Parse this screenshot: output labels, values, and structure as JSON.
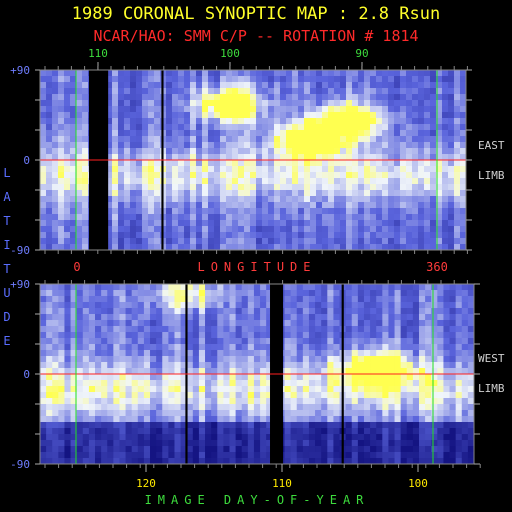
{
  "title": "1989 CORONAL SYNOPTIC MAP : 2.8 Rsun",
  "subtitle": "NCAR/HAO: SMM C/P -- ROTATION # 1814",
  "colors": {
    "title": "#ffff2a",
    "subtitle": "#ff2a2a",
    "top_ticks": "#3ddc3d",
    "latitude_ticks": "#6f7dff",
    "bottom_ticks": "#ffe900",
    "longitude_ticks": "#ff3b3b",
    "side_labels": "#d0d0d0",
    "equator_line": "#ff2020",
    "marker_line": "#20e020",
    "low_intensity": "#15158a",
    "high_intensity": "#fff55a"
  },
  "chart_data": {
    "type": "heatmap",
    "ylabel": "LATITUDE",
    "top_axis_ticks": [
      "110",
      "100",
      "90"
    ],
    "longitude_label": "LONGITUDE",
    "longitude_ticks": [
      "0",
      "360"
    ],
    "bottom_axis_label": "IMAGE DAY-OF-YEAR",
    "bottom_axis_ticks": [
      "120",
      "110",
      "100"
    ],
    "panels": [
      {
        "name": "east",
        "side_labels": [
          "EAST",
          "LIMB"
        ],
        "lat_ticks": [
          "+90",
          "0",
          "-90"
        ],
        "ylim": [
          -90,
          90
        ],
        "equator": 0,
        "data_gaps_frac": [
          [
            0.115,
            0.16
          ],
          [
            0.285,
            0.29
          ]
        ],
        "bright_regions": [
          {
            "day": 100,
            "lat": 55,
            "level": "high"
          },
          {
            "day": 94,
            "lat": 20,
            "level": "high"
          },
          {
            "day": 91,
            "lat": 40,
            "level": "high"
          }
        ]
      },
      {
        "name": "west",
        "side_labels": [
          "WEST",
          "LIMB"
        ],
        "lat_ticks": [
          "+90",
          "0",
          "-90"
        ],
        "ylim": [
          -90,
          90
        ],
        "equator": 0,
        "data_gaps_frac": [
          [
            0.335,
            0.34
          ],
          [
            0.53,
            0.56
          ],
          [
            0.695,
            0.7
          ]
        ],
        "bright_regions": [
          {
            "day": 103,
            "lat": 5,
            "level": "high"
          },
          {
            "day": 117,
            "lat": 80,
            "level": "medium"
          }
        ]
      }
    ]
  }
}
